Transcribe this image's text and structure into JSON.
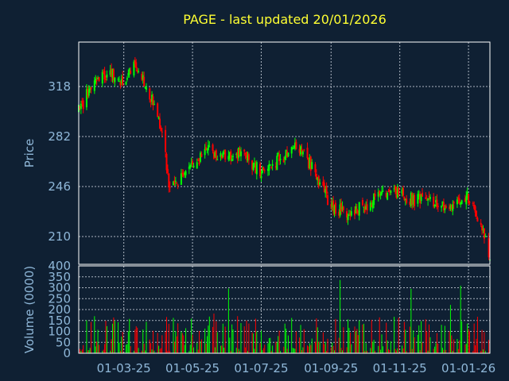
{
  "chart_data": {
    "type": "candlestick",
    "title": "PAGE - last updated 20/01/2026",
    "price_panel": {
      "ylabel": "Price",
      "yticks": [
        210,
        246,
        282,
        318
      ],
      "ylim": [
        190,
        350
      ]
    },
    "volume_panel": {
      "ylabel": "Volume (0000)",
      "yticks": [
        0,
        50,
        100,
        150,
        200,
        250,
        300,
        350,
        400
      ],
      "ylim": [
        0,
        400
      ]
    },
    "x_axis": {
      "tick_labels": [
        "01-03-25",
        "01-05-25",
        "01-07-25",
        "01-09-25",
        "01-11-25",
        "01-01-26"
      ],
      "tick_dates": [
        "2025-03-01",
        "2025-05-01",
        "2025-07-01",
        "2025-09-01",
        "2025-11-01",
        "2026-01-01"
      ],
      "start_date": "2025-01-20",
      "end_date": "2026-01-20"
    },
    "grid": true,
    "colors": {
      "up": "#00ff00",
      "down": "#ff0000",
      "background": "#0f2033",
      "title": "#ffff33",
      "axis_text": "#8fb7d8"
    },
    "close_anchors": [
      {
        "date": "2025-01-20",
        "close": 300
      },
      {
        "date": "2025-02-01",
        "close": 320
      },
      {
        "date": "2025-02-15",
        "close": 328
      },
      {
        "date": "2025-03-01",
        "close": 322
      },
      {
        "date": "2025-03-10",
        "close": 332
      },
      {
        "date": "2025-03-20",
        "close": 320
      },
      {
        "date": "2025-04-01",
        "close": 298
      },
      {
        "date": "2025-04-10",
        "close": 250
      },
      {
        "date": "2025-04-20",
        "close": 250
      },
      {
        "date": "2025-05-01",
        "close": 262
      },
      {
        "date": "2025-05-15",
        "close": 272
      },
      {
        "date": "2025-06-01",
        "close": 268
      },
      {
        "date": "2025-06-15",
        "close": 270
      },
      {
        "date": "2025-07-01",
        "close": 255
      },
      {
        "date": "2025-07-15",
        "close": 265
      },
      {
        "date": "2025-08-01",
        "close": 275
      },
      {
        "date": "2025-08-15",
        "close": 260
      },
      {
        "date": "2025-09-01",
        "close": 232
      },
      {
        "date": "2025-09-15",
        "close": 228
      },
      {
        "date": "2025-10-01",
        "close": 232
      },
      {
        "date": "2025-10-15",
        "close": 240
      },
      {
        "date": "2025-11-01",
        "close": 240
      },
      {
        "date": "2025-11-15",
        "close": 236
      },
      {
        "date": "2025-12-01",
        "close": 236
      },
      {
        "date": "2025-12-15",
        "close": 232
      },
      {
        "date": "2026-01-01",
        "close": 238
      },
      {
        "date": "2026-01-10",
        "close": 222
      },
      {
        "date": "2026-01-20",
        "close": 196
      }
    ],
    "volume_range": [
      10,
      350
    ]
  }
}
